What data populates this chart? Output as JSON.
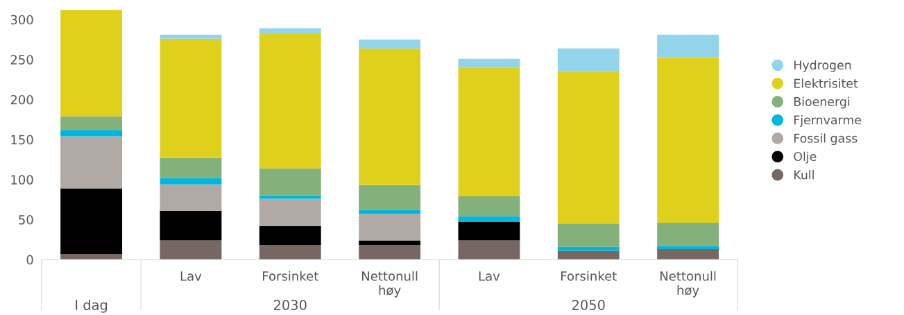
{
  "chart_data": {
    "type": "bar",
    "stacked": true,
    "categories": [
      null,
      "Lav",
      "Forsinket",
      "Nettonull høy",
      "Lav",
      "Forsinket",
      "Nettonull høy"
    ],
    "series": [
      {
        "name": "Kull",
        "color": "#776762",
        "values": [
          7,
          24,
          18,
          18,
          24,
          11,
          13
        ]
      },
      {
        "name": "Olje",
        "color": "#000000",
        "values": [
          82,
          37,
          24,
          6,
          23,
          0,
          0
        ]
      },
      {
        "name": "Fossil gass",
        "color": "#b1a9a3",
        "values": [
          65,
          33,
          34,
          33,
          0,
          0,
          0
        ]
      },
      {
        "name": "Fjernvarme",
        "color": "#00b6dc",
        "values": [
          8,
          8,
          4,
          5,
          7,
          5,
          4
        ]
      },
      {
        "name": "Bioenergi",
        "color": "#84b07c",
        "values": [
          17,
          25,
          34,
          31,
          25,
          29,
          29
        ]
      },
      {
        "name": "Elektrisitet",
        "color": "#e0d01e",
        "values": [
          133,
          149,
          168,
          171,
          161,
          190,
          207
        ]
      },
      {
        "name": "Hydrogen",
        "color": "#92d5ea",
        "values": [
          0,
          5,
          7,
          11,
          11,
          29,
          28
        ]
      }
    ],
    "ylim": [
      0,
      315
    ],
    "yticks": [
      0,
      50,
      100,
      150,
      200,
      250,
      300
    ],
    "grid": false,
    "legend": "right",
    "annotations": [
      "I dag",
      "2030",
      "2050"
    ]
  }
}
